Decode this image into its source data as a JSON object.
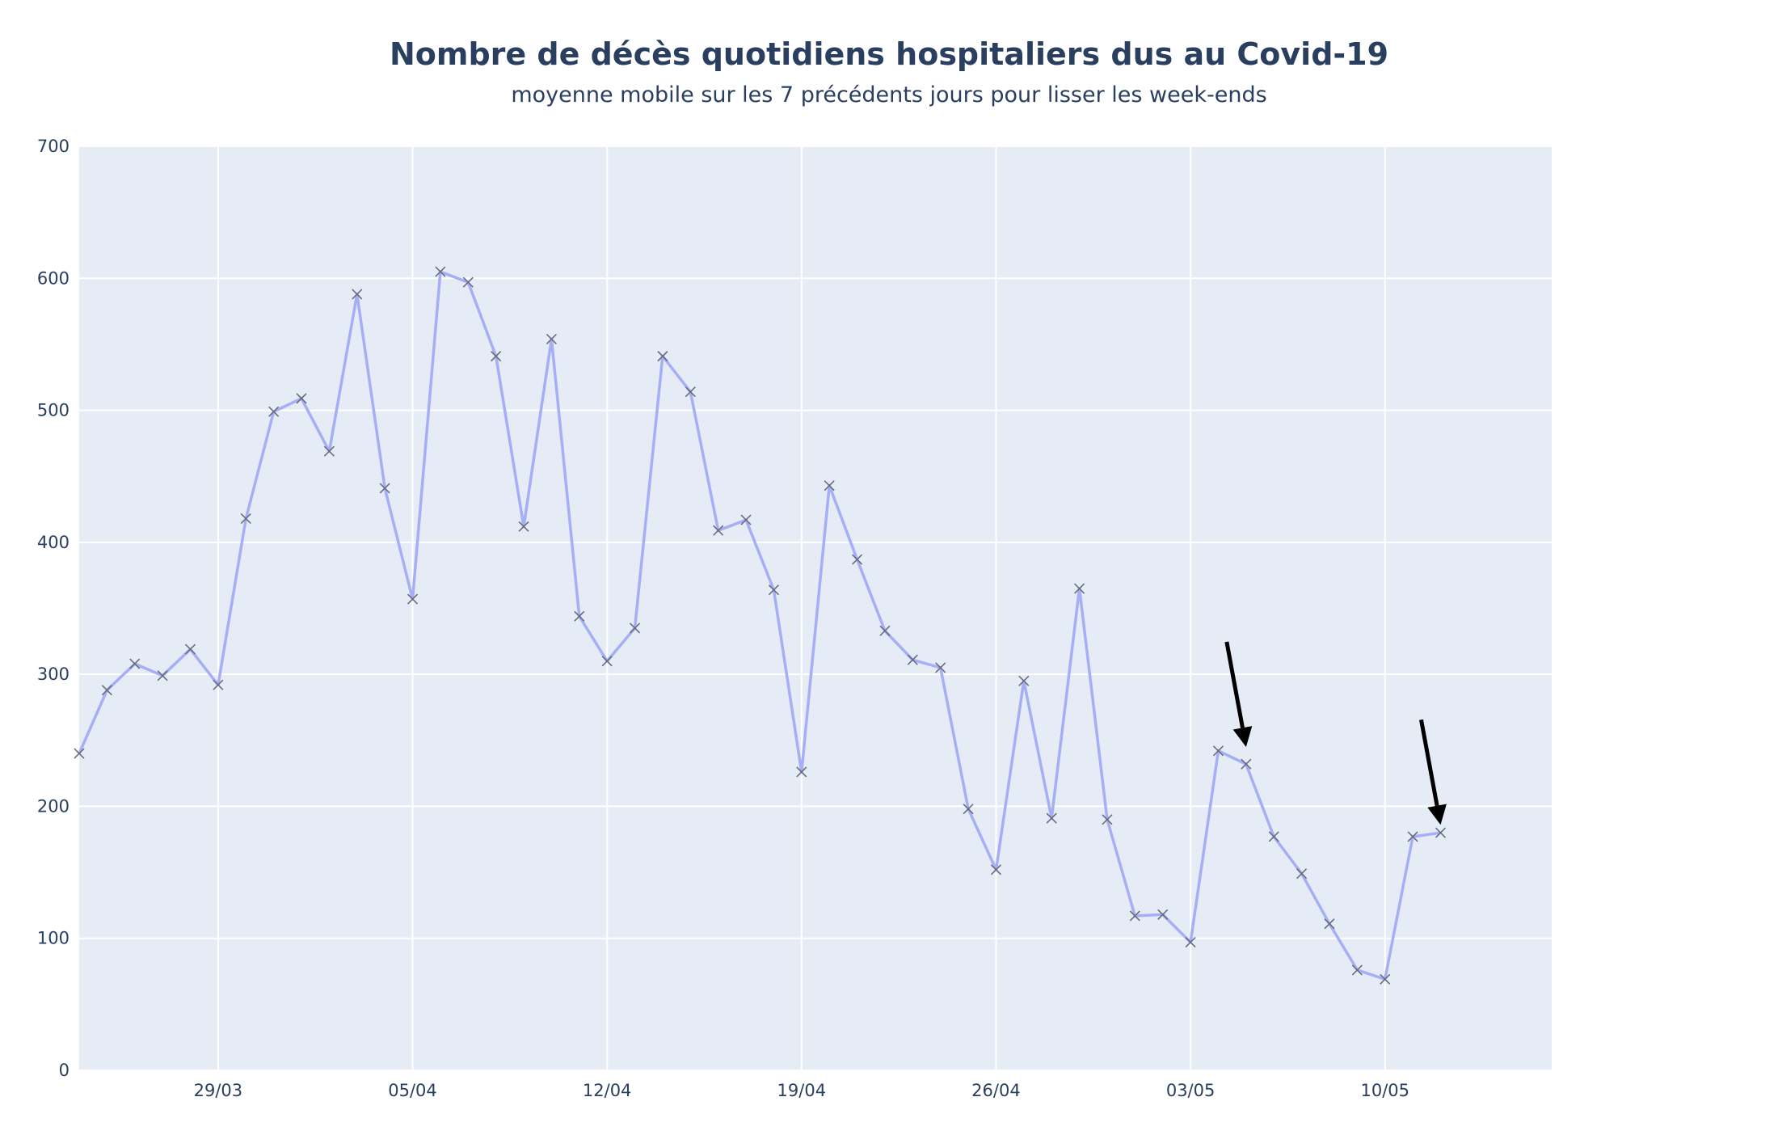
{
  "chart_data": {
    "type": "line",
    "title": "Nombre de décès quotidiens hospitaliers dus au Covid-19",
    "subtitle": "moyenne mobile sur les 7 précédents jours pour lisser les week-ends",
    "xlabel": "",
    "ylabel": "",
    "x_start": "2020-03-24",
    "x_end": "2020-05-16",
    "ylim": [
      0,
      700
    ],
    "yticks": [
      0,
      100,
      200,
      300,
      400,
      500,
      600,
      700
    ],
    "xticks": [
      {
        "date": "2020-03-29",
        "label": "29/03"
      },
      {
        "date": "2020-04-05",
        "label": "05/04"
      },
      {
        "date": "2020-04-12",
        "label": "12/04"
      },
      {
        "date": "2020-04-19",
        "label": "19/04"
      },
      {
        "date": "2020-04-26",
        "label": "26/04"
      },
      {
        "date": "2020-05-03",
        "label": "03/05"
      },
      {
        "date": "2020-05-10",
        "label": "10/05"
      }
    ],
    "grid": true,
    "legend": "none",
    "colors": {
      "line": "#a4aff5",
      "marker": "#6b6b80",
      "plot_background": "#e5ecf6",
      "text": "#2a3f5f",
      "arrow": "#000000"
    },
    "series": [
      {
        "x": [
          "2020-03-24",
          "2020-03-25",
          "2020-03-26",
          "2020-03-27",
          "2020-03-28",
          "2020-03-29",
          "2020-03-30",
          "2020-03-31",
          "2020-04-01",
          "2020-04-02",
          "2020-04-03",
          "2020-04-04",
          "2020-04-05",
          "2020-04-06",
          "2020-04-07",
          "2020-04-08",
          "2020-04-09",
          "2020-04-10",
          "2020-04-11",
          "2020-04-12",
          "2020-04-13",
          "2020-04-14",
          "2020-04-15",
          "2020-04-16",
          "2020-04-17",
          "2020-04-18",
          "2020-04-19",
          "2020-04-20",
          "2020-04-21",
          "2020-04-22",
          "2020-04-23",
          "2020-04-24",
          "2020-04-25",
          "2020-04-26",
          "2020-04-27",
          "2020-04-28",
          "2020-04-29",
          "2020-04-30",
          "2020-05-01",
          "2020-05-02",
          "2020-05-03",
          "2020-05-04",
          "2020-05-05",
          "2020-05-06",
          "2020-05-07",
          "2020-05-08",
          "2020-05-09",
          "2020-05-10",
          "2020-05-11",
          "2020-05-12"
        ],
        "y": [
          240,
          288,
          308,
          299,
          319,
          292,
          418,
          499,
          509,
          469,
          588,
          441,
          357,
          605,
          597,
          541,
          412,
          554,
          344,
          310,
          335,
          541,
          514,
          409,
          417,
          364,
          226,
          443,
          387,
          333,
          311,
          305,
          198,
          152,
          295,
          191,
          365,
          190,
          117,
          118,
          97,
          242,
          232,
          177,
          149,
          111,
          76,
          69,
          177,
          180
        ]
      }
    ],
    "annotations": [
      {
        "type": "arrow",
        "x": "2020-05-05",
        "y": 245
      },
      {
        "type": "arrow",
        "x": "2020-05-12",
        "y": 186
      }
    ]
  }
}
